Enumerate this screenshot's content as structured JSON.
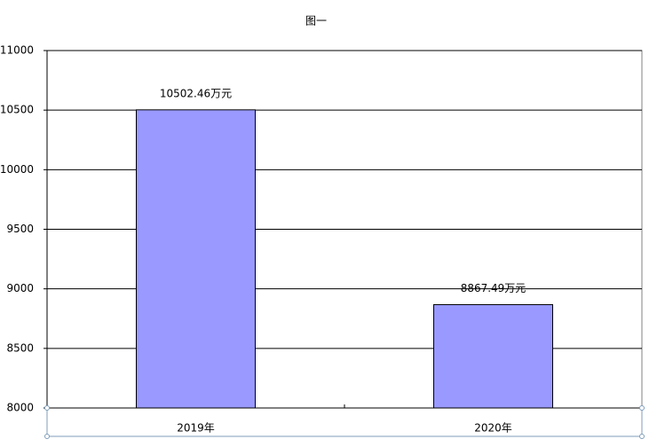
{
  "chart_data": {
    "type": "bar",
    "title": "图一",
    "categories": [
      "2019年",
      "2020年"
    ],
    "values": [
      10502.46,
      8867.49
    ],
    "value_labels": [
      "10502.46万元",
      "8867.49万元"
    ],
    "color": "#9999ff",
    "ylim": [
      8000,
      11000
    ],
    "yticks": [
      8000,
      8500,
      9000,
      9500,
      10000,
      10500,
      11000
    ],
    "grid": true
  }
}
